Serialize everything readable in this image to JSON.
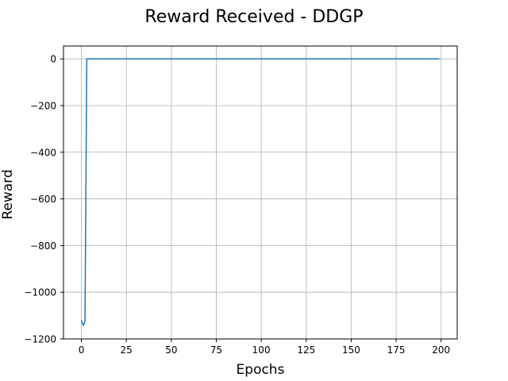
{
  "chart_data": {
    "type": "line",
    "title": "Reward Received - DDGP",
    "xlabel": "Epochs",
    "ylabel": "Reward",
    "xlim": [
      -9.95,
      208.95
    ],
    "ylim": [
      -1200,
      55
    ],
    "xticks": [
      0,
      25,
      50,
      75,
      100,
      125,
      150,
      175,
      200
    ],
    "yticks": [
      -1200,
      -1000,
      -800,
      -600,
      -400,
      -200,
      0
    ],
    "ytick_labels": [
      "−1200",
      "−1000",
      "−800",
      "−600",
      "−400",
      "−200",
      "0"
    ],
    "grid": true,
    "series": [
      {
        "color": "#1f77b4",
        "x": [
          0,
          1,
          2,
          3,
          4,
          199
        ],
        "y": [
          -1120,
          -1142,
          -1128,
          0,
          0,
          0
        ]
      }
    ]
  }
}
